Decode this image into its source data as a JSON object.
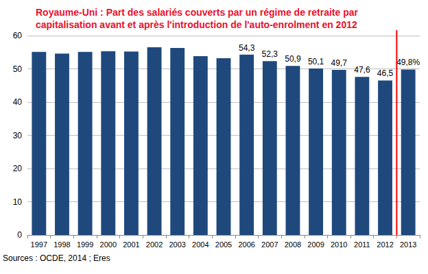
{
  "chart_data": {
    "type": "bar",
    "title": "Royaume-Uni : Part des salariés couverts par un régime de retraite par capitalisation avant et après l'introduction de l'auto-enrolment en 2012",
    "source": "Sources : OCDE, 2014 ; Eres",
    "categories": [
      "1997",
      "1998",
      "1999",
      "2000",
      "2001",
      "2002",
      "2003",
      "2004",
      "2005",
      "2006",
      "2007",
      "2008",
      "2009",
      "2010",
      "2011",
      "2012",
      "2013"
    ],
    "values": [
      55.1,
      54.6,
      55.1,
      55.3,
      55.2,
      56.5,
      56.3,
      53.8,
      53.2,
      54.3,
      52.3,
      50.9,
      50.1,
      49.7,
      47.6,
      46.5,
      49.8
    ],
    "value_labels": [
      null,
      null,
      null,
      null,
      null,
      null,
      null,
      null,
      null,
      "54,3",
      "52,3",
      "50,9",
      "50,1",
      "49,7",
      "47,6",
      "46,5",
      "49,8%"
    ],
    "data_labels": true,
    "color": "#1f497d",
    "ylim": [
      0,
      60
    ],
    "yticks": [
      0,
      10,
      20,
      30,
      40,
      50,
      60
    ],
    "grid": true
  }
}
